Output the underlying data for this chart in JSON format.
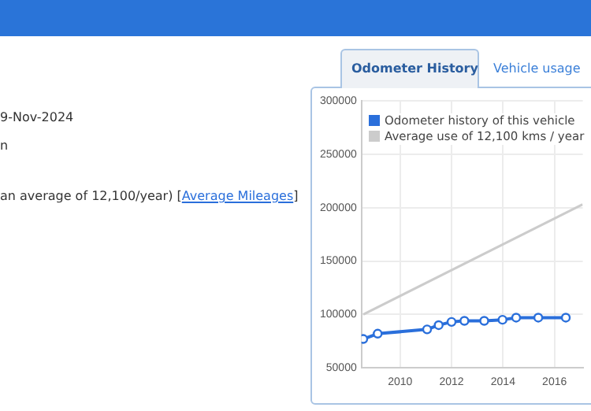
{
  "chart_data": {
    "type": "line",
    "annotations": [
      "9-Nov-2024",
      "n",
      "an average of 12,100/year) [",
      "Average Mileages",
      "]",
      "Odometer History",
      "Vehicle usage"
    ],
    "xlim": [
      2008.5,
      2017.1
    ],
    "xticks": [
      2010,
      2012,
      2014,
      2016
    ],
    "ylim": [
      50000,
      300000
    ],
    "yticks": [
      50000,
      100000,
      150000,
      200000,
      250000,
      300000
    ],
    "grid": true,
    "legend": "top left",
    "marker": "circle",
    "line_style": "solid",
    "series": [
      {
        "name": "Odometer history of this vehicle",
        "color": "#2a6fdb",
        "x": [
          2008.57,
          2009.13,
          2011.05,
          2011.5,
          2012.0,
          2012.5,
          2013.27,
          2013.98,
          2014.51,
          2015.37,
          2016.44
        ],
        "values": [
          77000,
          82000,
          86000,
          90000,
          93000,
          94000,
          94000,
          95000,
          97000,
          97000,
          97000
        ]
      },
      {
        "name": "Average use of 12,100 kms / year",
        "color": "#cccccc",
        "marker": "none",
        "x": [
          2008.57,
          2017.09
        ],
        "values": [
          100000,
          203000
        ]
      }
    ]
  }
}
